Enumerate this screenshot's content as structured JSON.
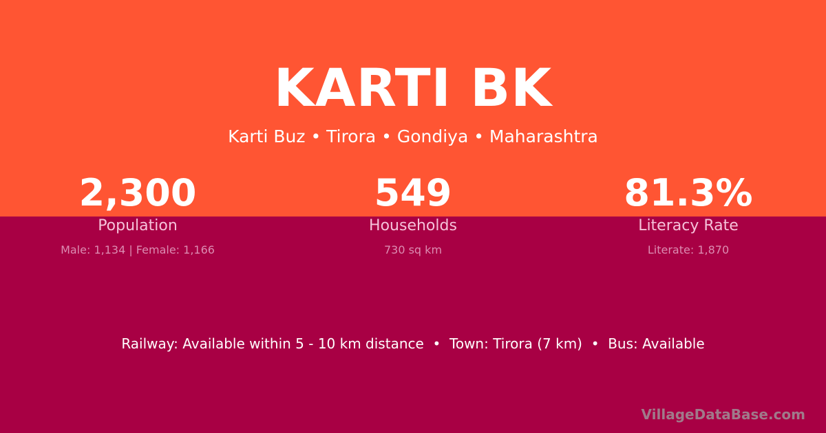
{
  "colors": {
    "top_band": "#FF5533",
    "bottom_band": "#A80044"
  },
  "title": "KARTI BK",
  "subtitle": "Karti Buz • Tirora • Gondiya • Maharashtra",
  "stats": [
    {
      "value": "2,300",
      "label": "Population",
      "detail": "Male: 1,134 | Female: 1,166"
    },
    {
      "value": "549",
      "label": "Households",
      "detail": "730 sq km"
    },
    {
      "value": "81.3%",
      "label": "Literacy Rate",
      "detail": "Literate: 1,870"
    }
  ],
  "footer": "Railway: Available within 5 - 10 km distance  •  Town: Tirora (7 km)  •  Bus: Available",
  "brand": "VillageDataBase.com"
}
